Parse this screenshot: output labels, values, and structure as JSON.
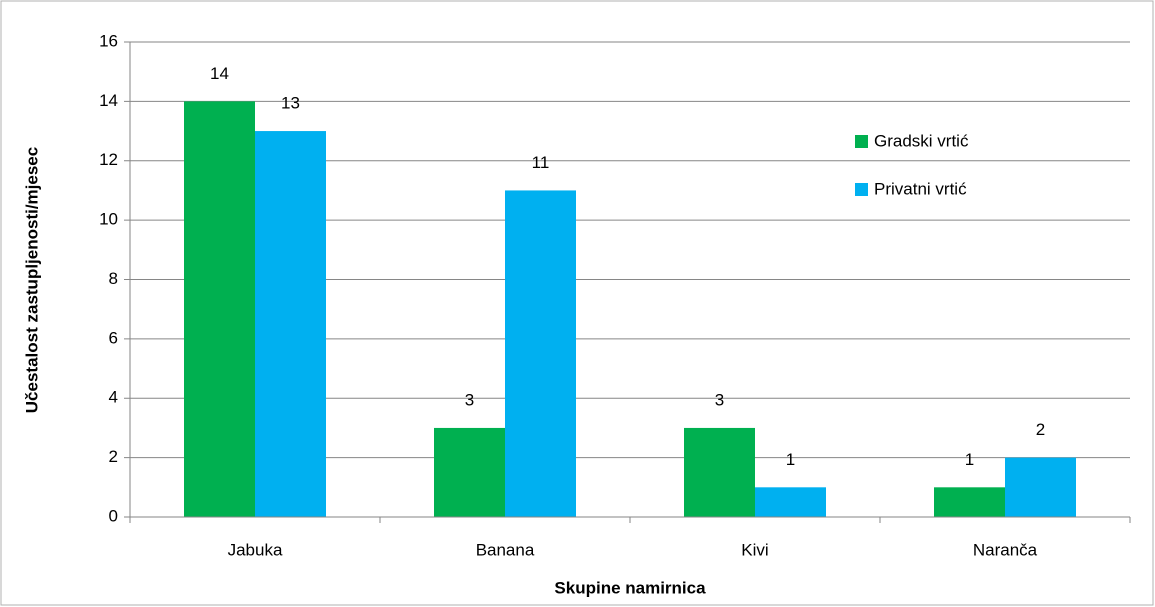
{
  "chart_data": {
    "type": "bar",
    "x_label": "Skupine namirnica",
    "y_label": "Učestalost zastupljenosti/mjesec",
    "categories": [
      "Jabuka",
      "Banana",
      "Kivi",
      "Naranča"
    ],
    "series": [
      {
        "name": "Gradski vrtić",
        "color": "#00b050",
        "values": [
          14,
          3,
          3,
          1
        ]
      },
      {
        "name": "Privatni vrtić",
        "color": "#00b0f0",
        "values": [
          13,
          11,
          1,
          2
        ]
      }
    ],
    "ylim": [
      0,
      16
    ],
    "yticks": [
      0,
      2,
      4,
      6,
      8,
      10,
      12,
      14,
      16
    ],
    "grid": true,
    "legend": "upper right"
  }
}
